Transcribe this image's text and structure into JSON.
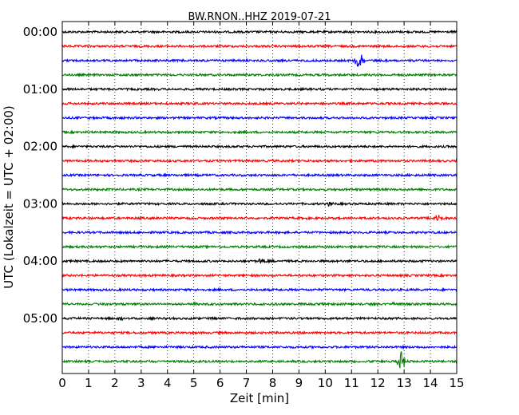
{
  "chart_data": {
    "type": "line",
    "title": "BW.RNON..HHZ 2019-07-21",
    "xlabel": "Zeit  [min]",
    "ylabel": "UTC (Lokalzeit = UTC + 02:00)",
    "xlim": [
      0,
      15
    ],
    "xticks": [
      "0",
      "1",
      "2",
      "3",
      "4",
      "5",
      "6",
      "7",
      "8",
      "9",
      "10",
      "11",
      "12",
      "13",
      "14",
      "15"
    ],
    "yticks": [
      {
        "label": "00:00",
        "row": 0
      },
      {
        "label": "01:00",
        "row": 4
      },
      {
        "label": "02:00",
        "row": 8
      },
      {
        "label": "03:00",
        "row": 12
      },
      {
        "label": "04:00",
        "row": 16
      },
      {
        "label": "05:00",
        "row": 20
      }
    ],
    "grid": "vertical-dotted",
    "row_colors": [
      "#000000",
      "#ff0000",
      "#0000ff",
      "#008000"
    ],
    "series": [
      {
        "row": 0,
        "events": []
      },
      {
        "row": 1,
        "events": []
      },
      {
        "row": 2,
        "events": [
          {
            "x": 11.3,
            "amp": 1.0
          }
        ]
      },
      {
        "row": 3,
        "events": []
      },
      {
        "row": 4,
        "events": []
      },
      {
        "row": 5,
        "events": []
      },
      {
        "row": 6,
        "events": []
      },
      {
        "row": 7,
        "events": []
      },
      {
        "row": 8,
        "events": []
      },
      {
        "row": 9,
        "events": []
      },
      {
        "row": 10,
        "events": []
      },
      {
        "row": 11,
        "events": []
      },
      {
        "row": 12,
        "events": [
          {
            "x": 10.2,
            "amp": 0.2
          }
        ]
      },
      {
        "row": 13,
        "events": [
          {
            "x": 14.3,
            "amp": 0.35
          }
        ]
      },
      {
        "row": 14,
        "events": []
      },
      {
        "row": 15,
        "events": []
      },
      {
        "row": 16,
        "events": [
          {
            "x": 7.6,
            "amp": 0.25
          }
        ]
      },
      {
        "row": 17,
        "events": []
      },
      {
        "row": 18,
        "events": []
      },
      {
        "row": 19,
        "events": [
          {
            "x": 5.0,
            "amp": 0.15
          },
          {
            "x": 12.6,
            "amp": 0.15
          }
        ]
      },
      {
        "row": 20,
        "events": [
          {
            "x": 2.2,
            "amp": 0.2
          }
        ]
      },
      {
        "row": 21,
        "events": []
      },
      {
        "row": 22,
        "events": []
      },
      {
        "row": 23,
        "events": [
          {
            "x": 12.9,
            "amp": 0.9
          }
        ]
      }
    ]
  }
}
